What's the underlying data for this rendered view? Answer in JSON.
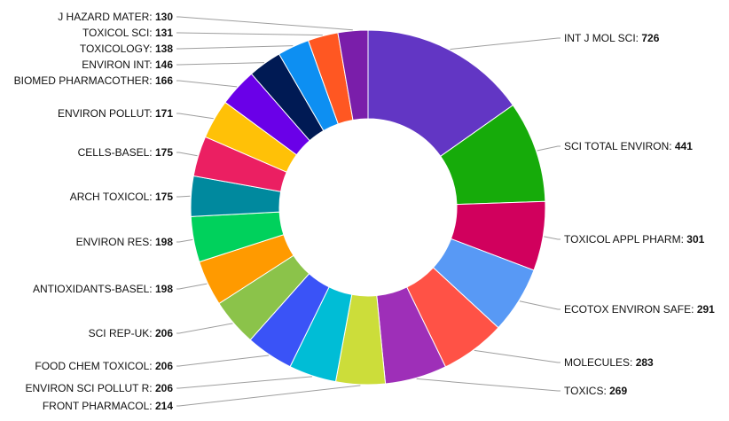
{
  "chart_data": {
    "type": "pie",
    "donut": true,
    "start_angle_deg": 0,
    "direction": "clockwise",
    "legend": "none",
    "categories": [
      "INT J MOL SCI",
      "SCI TOTAL ENVIRON",
      "TOXICOL APPL PHARM",
      "ECOTOX ENVIRON SAFE",
      "MOLECULES",
      "TOXICS",
      "FRONT PHARMACOL",
      "ENVIRON SCI POLLUT R",
      "FOOD CHEM TOXICOL",
      "SCI REP-UK",
      "ANTIOXIDANTS-BASEL",
      "ENVIRON RES",
      "ARCH TOXICOL",
      "CELLS-BASEL",
      "ENVIRON POLLUT",
      "BIOMED PHARMACOTHER",
      "ENVIRON INT",
      "TOXICOLOGY",
      "TOXICOL SCI",
      "J HAZARD MATER"
    ],
    "values": [
      726,
      441,
      301,
      291,
      283,
      269,
      214,
      206,
      206,
      206,
      198,
      198,
      175,
      175,
      171,
      166,
      146,
      138,
      131,
      130
    ],
    "colors": [
      "#6236c4",
      "#16ab0a",
      "#d1005d",
      "#5899f5",
      "#ff5246",
      "#9e2fb8",
      "#ccdd3a",
      "#00bdd6",
      "#3a53f7",
      "#8bc34a",
      "#ff9a00",
      "#00d15c",
      "#00899e",
      "#eb1f62",
      "#ffc107",
      "#6a00e8",
      "#001a54",
      "#0d8ff2",
      "#ff5722",
      "#7a1eaa"
    ]
  }
}
